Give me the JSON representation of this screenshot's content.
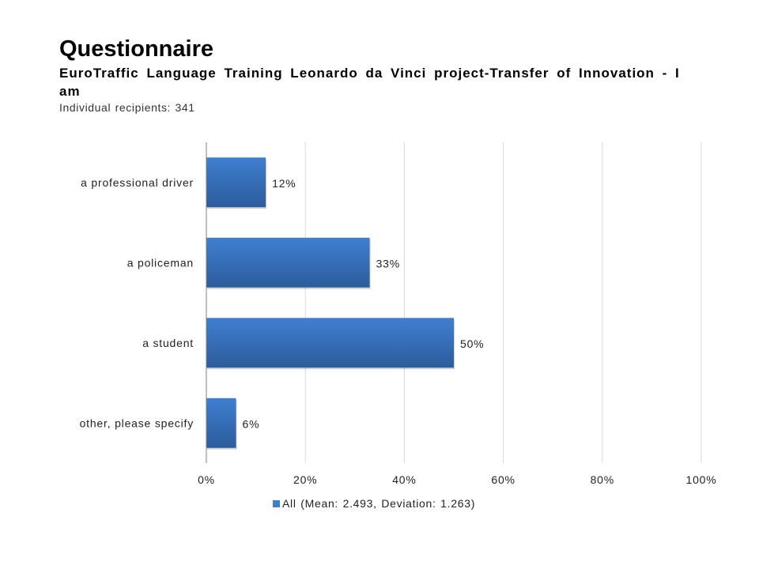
{
  "header": {
    "title": "Questionnaire",
    "subtitle": "EuroTraffic Language Training  Leonardo da Vinci project-Transfer of Innovation - I am",
    "recipients": "Individual recipients: 341"
  },
  "colors": {
    "bar_top": "#3f7fd0",
    "bar_bottom": "#2c5c9c",
    "gridline": "#d9d9d9",
    "axis": "#7f7f7f"
  },
  "chart_data": {
    "type": "bar",
    "orientation": "horizontal",
    "categories": [
      "a professional driver",
      "a policeman",
      "a student",
      "other, please specify"
    ],
    "series": [
      {
        "name": "All (Mean: 2.493, Deviation: 1.263)",
        "values": [
          12,
          33,
          50,
          6
        ],
        "labels": [
          "12%",
          "33%",
          "50%",
          "6%"
        ]
      }
    ],
    "x_ticks": [
      "0%",
      "20%",
      "40%",
      "60%",
      "80%",
      "100%"
    ],
    "xlim": [
      0,
      100
    ],
    "grid": true,
    "legend_position": "bottom"
  }
}
